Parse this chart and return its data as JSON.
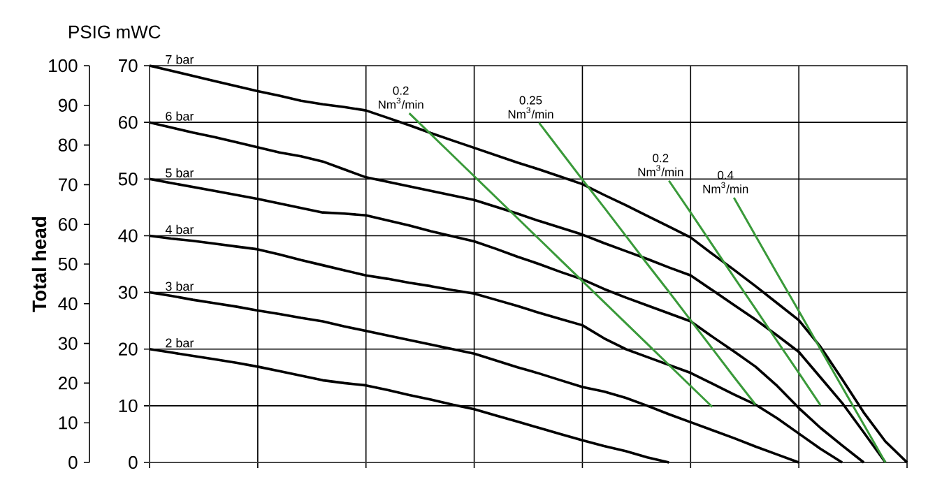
{
  "chart_data": {
    "type": "line",
    "y2label": "Total head",
    "annotations": [
      "PSIG",
      "mWC"
    ],
    "categories": [
      null,
      null,
      null,
      null,
      null,
      null,
      null,
      null,
      null,
      null,
      null,
      null,
      null,
      null,
      null,
      null,
      null,
      null,
      null,
      null,
      null,
      null,
      null,
      null,
      null,
      null,
      null,
      null,
      null,
      null,
      null,
      null,
      null,
      null,
      null,
      null
    ],
    "ylim": [
      0,
      70
    ],
    "yticks": [
      0,
      10,
      20,
      30,
      40,
      50,
      60,
      70
    ],
    "y2lim": [
      0,
      100
    ],
    "y2ticks": [
      0,
      10,
      20,
      30,
      40,
      50,
      60,
      70,
      80,
      90,
      100
    ],
    "tick_labels": "y",
    "grid": true,
    "series": [
      {
        "name": "7 bar",
        "color": "#000000",
        "values": [
          70,
          69.1,
          68.2,
          67.3,
          66.4,
          65.5,
          64.7,
          63.8,
          63.2,
          62.7,
          62.1,
          60.8,
          59.5,
          58.1,
          56.8,
          55.5,
          54.2,
          52.9,
          51.7,
          50.4,
          49.1,
          47.2,
          45.4,
          43.5,
          41.6,
          39.7,
          36.8,
          34.0,
          31.1,
          28.1,
          25.1,
          20.4,
          14.7,
          8.8,
          3.7,
          0
        ]
      },
      {
        "name": "6 bar",
        "color": "#000000",
        "values": [
          60,
          59.1,
          58.2,
          57.4,
          56.5,
          55.6,
          54.7,
          54.0,
          53.1,
          51.7,
          50.3,
          49.5,
          48.7,
          47.9,
          47.1,
          46.3,
          45.1,
          43.9,
          42.6,
          41.4,
          40.2,
          38.7,
          37.3,
          35.9,
          34.4,
          33.0,
          30.4,
          27.8,
          25.2,
          22.4,
          19.5,
          15.0,
          10.5,
          5.3,
          0,
          null
        ]
      },
      {
        "name": "5 bar",
        "color": "#000000",
        "values": [
          50,
          49.3,
          48.6,
          47.9,
          47.2,
          46.5,
          45.7,
          44.9,
          44.1,
          43.9,
          43.6,
          42.7,
          41.8,
          40.8,
          39.9,
          39.0,
          37.7,
          36.3,
          35.0,
          33.6,
          32.3,
          30.6,
          29.1,
          27.7,
          26.3,
          24.9,
          22.2,
          19.6,
          16.9,
          13.5,
          9.6,
          6.1,
          3.0,
          0,
          null,
          null
        ]
      },
      {
        "name": "4 bar",
        "color": "#000000",
        "values": [
          40,
          39.5,
          39.1,
          38.6,
          38.1,
          37.6,
          36.7,
          35.7,
          34.8,
          33.9,
          33.0,
          32.4,
          31.7,
          31.1,
          30.4,
          29.8,
          28.7,
          27.6,
          26.4,
          25.3,
          24.2,
          21.9,
          20.0,
          18.6,
          17.2,
          15.8,
          13.9,
          12.0,
          10.2,
          7.8,
          5.1,
          2.4,
          0,
          null,
          null,
          null
        ]
      },
      {
        "name": "3 bar",
        "color": "#000000",
        "values": [
          30,
          29.4,
          28.7,
          28.1,
          27.5,
          26.8,
          26.2,
          25.5,
          24.9,
          24.0,
          23.2,
          22.4,
          21.6,
          20.8,
          20.0,
          19.2,
          18.0,
          16.8,
          15.7,
          14.5,
          13.3,
          12.5,
          11.4,
          10.0,
          8.5,
          7.1,
          5.7,
          4.3,
          2.8,
          1.4,
          0,
          null,
          null,
          null,
          null,
          null
        ]
      },
      {
        "name": "2 bar",
        "color": "#000000",
        "values": [
          20,
          19.4,
          18.8,
          18.2,
          17.6,
          16.9,
          16.1,
          15.3,
          14.5,
          14.0,
          13.6,
          12.8,
          11.9,
          11.1,
          10.2,
          9.4,
          8.3,
          7.2,
          6.1,
          5.0,
          3.9,
          2.9,
          2.0,
          0.9,
          0,
          null,
          null,
          null,
          null,
          null,
          null,
          null,
          null,
          null,
          null,
          null
        ]
      },
      {
        "name": "0.2 Nm$^{3}$/min",
        "color": "#3a9a3a",
        "values": [
          null,
          null,
          null,
          null,
          null,
          null,
          null,
          null,
          null,
          null,
          null,
          null,
          61.6,
          57.9,
          54.2,
          50.5,
          46.8,
          43.1,
          39.4,
          35.7,
          32.0,
          28.3,
          24.6,
          20.9,
          17.2,
          13.5,
          9.8,
          null,
          null,
          null,
          null,
          null,
          null,
          null,
          null,
          null
        ]
      },
      {
        "name": "0.25 Nm$^{3}$/min",
        "color": "#3a9a3a",
        "values": [
          null,
          null,
          null,
          null,
          null,
          null,
          null,
          null,
          null,
          null,
          null,
          null,
          null,
          null,
          null,
          null,
          null,
          null,
          59.9,
          54.9,
          49.9,
          45.0,
          40.0,
          35.0,
          30.1,
          25.1,
          20.1,
          15.1,
          10.2,
          null,
          null,
          null,
          null,
          null,
          null,
          null
        ]
      },
      {
        "name": "0.2 Nm$^{3}$/min",
        "color": "#3a9a3a",
        "values": [
          null,
          null,
          null,
          null,
          null,
          null,
          null,
          null,
          null,
          null,
          null,
          null,
          null,
          null,
          null,
          null,
          null,
          null,
          null,
          null,
          null,
          null,
          null,
          null,
          49.7,
          44.1,
          38.4,
          32.7,
          27.1,
          21.4,
          15.8,
          10.1,
          null,
          null,
          null,
          null
        ]
      },
      {
        "name": "0.4 Nm$^{3}$/min",
        "color": "#3a9a3a",
        "values": [
          null,
          null,
          null,
          null,
          null,
          null,
          null,
          null,
          null,
          null,
          null,
          null,
          null,
          null,
          null,
          null,
          null,
          null,
          null,
          null,
          null,
          null,
          null,
          null,
          null,
          null,
          null,
          46.7,
          40.0,
          33.3,
          26.7,
          20.0,
          13.3,
          6.7,
          0,
          null
        ]
      }
    ]
  }
}
